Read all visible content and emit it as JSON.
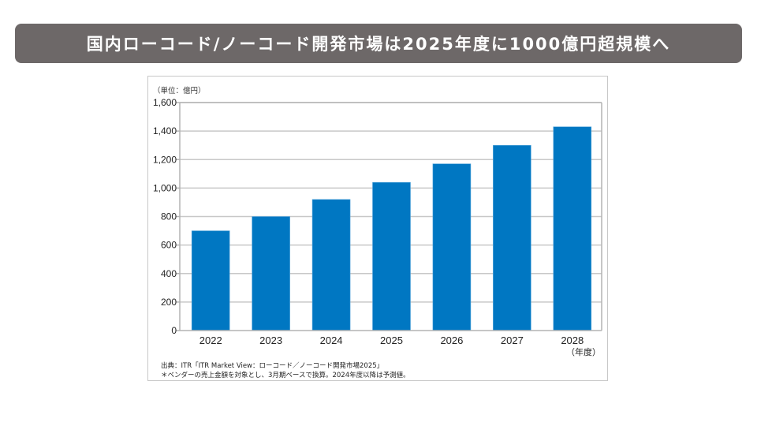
{
  "header": {
    "title": "国内ローコード/ノーコード開発市場は2025年度に1000億円超規模へ"
  },
  "chart_data": {
    "type": "bar",
    "title": "",
    "unit_label": "（単位：億円）",
    "xlabel": "（年度）",
    "ylabel": "",
    "categories": [
      "2022",
      "2023",
      "2024",
      "2025",
      "2026",
      "2027",
      "2028"
    ],
    "values": [
      700,
      800,
      920,
      1040,
      1170,
      1300,
      1430
    ],
    "ylim": [
      0,
      1600
    ],
    "yticks": [
      0,
      200,
      400,
      600,
      800,
      1000,
      1200,
      1400,
      1600
    ],
    "ytick_labels": [
      "0",
      "200",
      "400",
      "600",
      "800",
      "1,000",
      "1,200",
      "1,400",
      "1,600"
    ],
    "grid": true,
    "bar_color": "#0077c2",
    "grid_color": "#c8c8c8",
    "source_note": "出典：ITR「ITR Market View：ローコード／ノーコード開発市場2025」",
    "footnote": "＊ベンダーの売上金額を対象とし、3月期ベースで換算。2024年度以降は予測値。"
  },
  "colors": {
    "title_bar": "#6d6868",
    "title_text": "#ffffff"
  }
}
